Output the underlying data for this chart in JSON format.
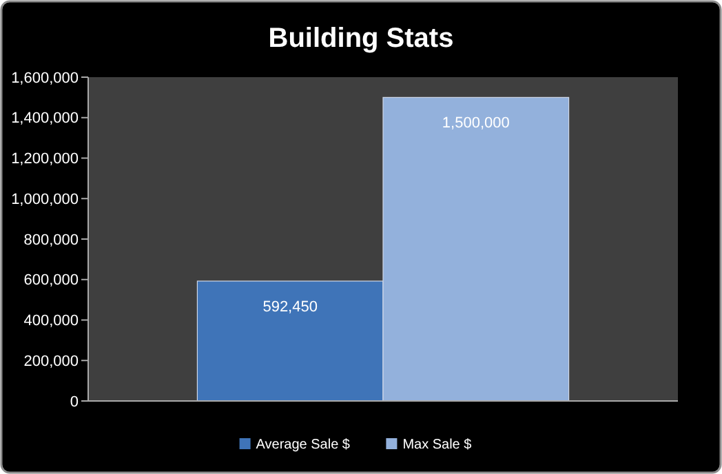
{
  "chart_data": {
    "type": "bar",
    "title": "Building Stats",
    "categories": [
      null
    ],
    "series": [
      {
        "name": "Average Sale $",
        "color": "#3f74b8",
        "values": [
          592450
        ],
        "value_labels": [
          "592,450"
        ]
      },
      {
        "name": "Max Sale $",
        "color": "#93b1dc",
        "values": [
          1500000
        ],
        "value_labels": [
          "1,500,000"
        ]
      }
    ],
    "ylim": [
      0,
      1600000
    ],
    "yticks": [
      0,
      {
        "value": 200000,
        "label": "200,000"
      },
      {
        "value": 400000,
        "label": "400,000"
      },
      {
        "value": 600000,
        "label": "600,000"
      },
      {
        "value": 800000,
        "label": "800,000"
      },
      {
        "value": 1000000,
        "label": "1,000,000"
      },
      {
        "value": 1200000,
        "label": "1,200,000"
      },
      {
        "value": 1400000,
        "label": "1,400,000"
      },
      {
        "value": 1600000,
        "label": "1,600,000"
      }
    ],
    "legend": "bottom",
    "grid": false
  }
}
